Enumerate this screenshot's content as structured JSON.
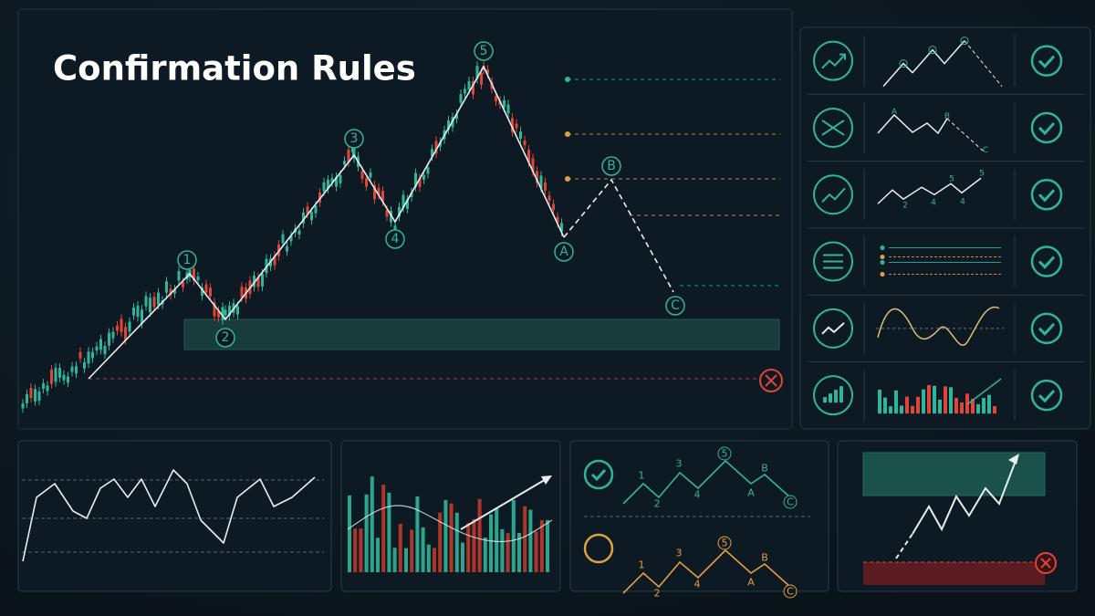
{
  "title": "Confirmation Rules",
  "main_waves": {
    "labels": [
      "1",
      "2",
      "3",
      "4",
      "5",
      "A",
      "B",
      "C"
    ]
  },
  "rule_rows": {
    "abc_labels": [
      "A",
      "B",
      "C"
    ],
    "impulse_labels": [
      "2",
      "4",
      "5",
      "4",
      "5"
    ]
  },
  "bottom_waves": {
    "confirmed": [
      "1",
      "2",
      "3",
      "4",
      "5",
      "A",
      "B",
      "C"
    ],
    "pending": [
      "1",
      "2",
      "3",
      "4",
      "5",
      "A",
      "B",
      "C"
    ]
  }
}
